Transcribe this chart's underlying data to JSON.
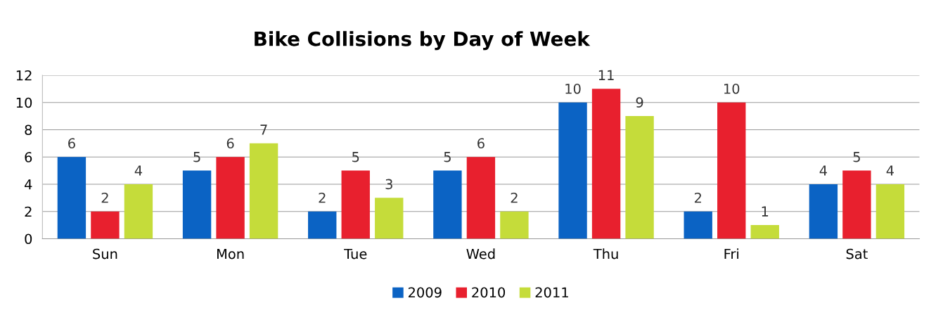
{
  "chart_data": {
    "type": "bar",
    "title": "Bike Collisions by Day of Week",
    "categories": [
      "Sun",
      "Mon",
      "Tue",
      "Wed",
      "Thu",
      "Fri",
      "Sat"
    ],
    "series": [
      {
        "name": "2009",
        "color": "#0b63c4",
        "values": [
          6,
          5,
          2,
          5,
          10,
          2,
          4
        ]
      },
      {
        "name": "2010",
        "color": "#e8202e",
        "values": [
          2,
          6,
          5,
          6,
          11,
          10,
          5
        ]
      },
      {
        "name": "2011",
        "color": "#c5dc3a",
        "values": [
          4,
          7,
          3,
          2,
          9,
          1,
          4
        ]
      }
    ],
    "ylim": [
      0,
      12
    ],
    "yticks": [
      0,
      2,
      4,
      6,
      8,
      10,
      12
    ],
    "grid": "y",
    "legend": "bottom",
    "data_labels": true
  }
}
